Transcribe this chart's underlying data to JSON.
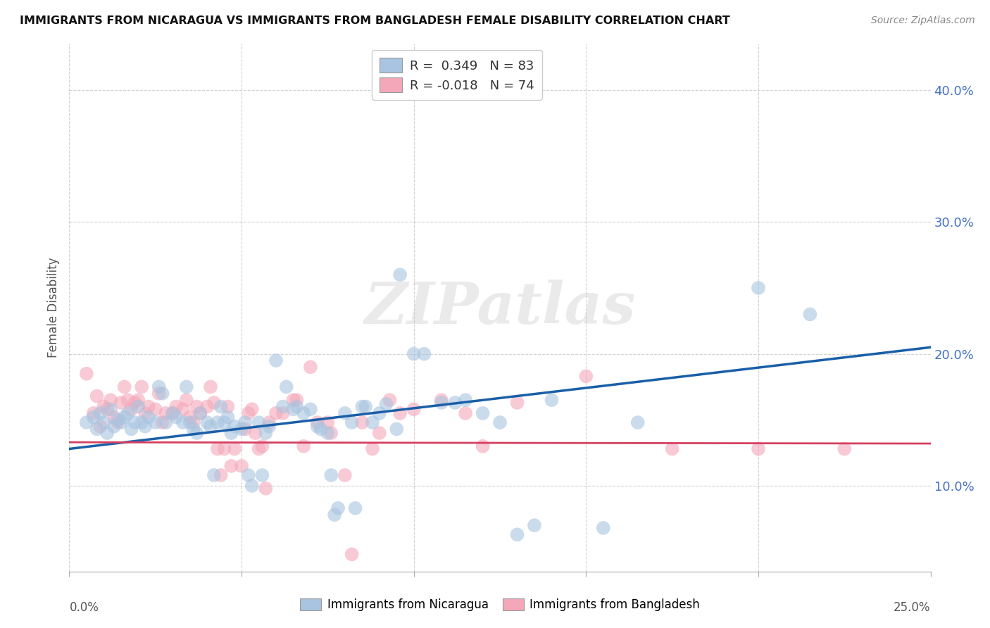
{
  "title": "IMMIGRANTS FROM NICARAGUA VS IMMIGRANTS FROM BANGLADESH FEMALE DISABILITY CORRELATION CHART",
  "source": "Source: ZipAtlas.com",
  "ylabel": "Female Disability",
  "yticks": [
    0.1,
    0.2,
    0.3,
    0.4
  ],
  "ytick_labels": [
    "10.0%",
    "20.0%",
    "30.0%",
    "40.0%"
  ],
  "xlim": [
    0.0,
    0.25
  ],
  "ylim": [
    0.035,
    0.435
  ],
  "watermark": "ZIPatlas",
  "legend_R": {
    "nicaragua": {
      "R": 0.349,
      "N": 83,
      "color": "#a8c4e0",
      "R_color": "#4472c4",
      "N_color": "#4472c4"
    },
    "bangladesh": {
      "R": -0.018,
      "N": 74,
      "color": "#f4a7b9",
      "R_color": "#e06070",
      "N_color": "#e06070"
    }
  },
  "trendline_nicaragua": {
    "color": "#1a5fa8",
    "start_x": 0.0,
    "start_y": 0.128,
    "end_x": 0.25,
    "end_y": 0.205
  },
  "trendline_bangladesh": {
    "color": "#d44060",
    "start_x": 0.0,
    "start_y": 0.133,
    "end_x": 0.25,
    "end_y": 0.132
  },
  "nicaragua_color": "#a8c4e0",
  "bangladesh_color": "#f4a7b9",
  "nicaragua_scatter": [
    [
      0.005,
      0.148
    ],
    [
      0.007,
      0.152
    ],
    [
      0.008,
      0.143
    ],
    [
      0.009,
      0.155
    ],
    [
      0.01,
      0.148
    ],
    [
      0.011,
      0.14
    ],
    [
      0.012,
      0.158
    ],
    [
      0.013,
      0.145
    ],
    [
      0.014,
      0.15
    ],
    [
      0.015,
      0.148
    ],
    [
      0.016,
      0.152
    ],
    [
      0.017,
      0.155
    ],
    [
      0.018,
      0.143
    ],
    [
      0.019,
      0.148
    ],
    [
      0.02,
      0.16
    ],
    [
      0.021,
      0.148
    ],
    [
      0.022,
      0.145
    ],
    [
      0.023,
      0.152
    ],
    [
      0.025,
      0.148
    ],
    [
      0.026,
      0.175
    ],
    [
      0.027,
      0.17
    ],
    [
      0.028,
      0.148
    ],
    [
      0.03,
      0.155
    ],
    [
      0.031,
      0.152
    ],
    [
      0.033,
      0.148
    ],
    [
      0.034,
      0.175
    ],
    [
      0.035,
      0.148
    ],
    [
      0.036,
      0.143
    ],
    [
      0.037,
      0.14
    ],
    [
      0.038,
      0.155
    ],
    [
      0.04,
      0.148
    ],
    [
      0.041,
      0.145
    ],
    [
      0.042,
      0.108
    ],
    [
      0.043,
      0.148
    ],
    [
      0.044,
      0.16
    ],
    [
      0.045,
      0.148
    ],
    [
      0.046,
      0.152
    ],
    [
      0.047,
      0.14
    ],
    [
      0.048,
      0.145
    ],
    [
      0.05,
      0.143
    ],
    [
      0.051,
      0.148
    ],
    [
      0.052,
      0.108
    ],
    [
      0.053,
      0.1
    ],
    [
      0.055,
      0.148
    ],
    [
      0.056,
      0.108
    ],
    [
      0.057,
      0.14
    ],
    [
      0.058,
      0.145
    ],
    [
      0.06,
      0.195
    ],
    [
      0.062,
      0.16
    ],
    [
      0.063,
      0.175
    ],
    [
      0.065,
      0.158
    ],
    [
      0.066,
      0.16
    ],
    [
      0.068,
      0.155
    ],
    [
      0.07,
      0.158
    ],
    [
      0.072,
      0.145
    ],
    [
      0.073,
      0.143
    ],
    [
      0.075,
      0.14
    ],
    [
      0.076,
      0.108
    ],
    [
      0.077,
      0.078
    ],
    [
      0.078,
      0.083
    ],
    [
      0.08,
      0.155
    ],
    [
      0.082,
      0.148
    ],
    [
      0.083,
      0.083
    ],
    [
      0.085,
      0.16
    ],
    [
      0.086,
      0.16
    ],
    [
      0.088,
      0.148
    ],
    [
      0.09,
      0.155
    ],
    [
      0.092,
      0.162
    ],
    [
      0.095,
      0.143
    ],
    [
      0.096,
      0.26
    ],
    [
      0.1,
      0.2
    ],
    [
      0.103,
      0.2
    ],
    [
      0.108,
      0.163
    ],
    [
      0.112,
      0.163
    ],
    [
      0.115,
      0.165
    ],
    [
      0.12,
      0.155
    ],
    [
      0.125,
      0.148
    ],
    [
      0.13,
      0.063
    ],
    [
      0.135,
      0.07
    ],
    [
      0.14,
      0.165
    ],
    [
      0.155,
      0.068
    ],
    [
      0.165,
      0.148
    ],
    [
      0.2,
      0.25
    ],
    [
      0.215,
      0.23
    ]
  ],
  "bangladesh_scatter": [
    [
      0.005,
      0.185
    ],
    [
      0.007,
      0.155
    ],
    [
      0.008,
      0.168
    ],
    [
      0.009,
      0.145
    ],
    [
      0.01,
      0.16
    ],
    [
      0.011,
      0.158
    ],
    [
      0.012,
      0.165
    ],
    [
      0.013,
      0.152
    ],
    [
      0.014,
      0.148
    ],
    [
      0.015,
      0.163
    ],
    [
      0.016,
      0.175
    ],
    [
      0.017,
      0.165
    ],
    [
      0.018,
      0.158
    ],
    [
      0.019,
      0.163
    ],
    [
      0.02,
      0.165
    ],
    [
      0.021,
      0.175
    ],
    [
      0.022,
      0.155
    ],
    [
      0.023,
      0.16
    ],
    [
      0.025,
      0.158
    ],
    [
      0.026,
      0.17
    ],
    [
      0.027,
      0.148
    ],
    [
      0.028,
      0.155
    ],
    [
      0.03,
      0.155
    ],
    [
      0.031,
      0.16
    ],
    [
      0.033,
      0.158
    ],
    [
      0.034,
      0.165
    ],
    [
      0.035,
      0.152
    ],
    [
      0.036,
      0.148
    ],
    [
      0.037,
      0.16
    ],
    [
      0.038,
      0.155
    ],
    [
      0.04,
      0.16
    ],
    [
      0.041,
      0.175
    ],
    [
      0.042,
      0.163
    ],
    [
      0.043,
      0.128
    ],
    [
      0.044,
      0.108
    ],
    [
      0.045,
      0.128
    ],
    [
      0.046,
      0.16
    ],
    [
      0.047,
      0.115
    ],
    [
      0.048,
      0.128
    ],
    [
      0.05,
      0.115
    ],
    [
      0.051,
      0.143
    ],
    [
      0.052,
      0.155
    ],
    [
      0.053,
      0.158
    ],
    [
      0.054,
      0.14
    ],
    [
      0.055,
      0.128
    ],
    [
      0.056,
      0.13
    ],
    [
      0.057,
      0.098
    ],
    [
      0.058,
      0.148
    ],
    [
      0.06,
      0.155
    ],
    [
      0.062,
      0.155
    ],
    [
      0.065,
      0.165
    ],
    [
      0.066,
      0.165
    ],
    [
      0.068,
      0.13
    ],
    [
      0.07,
      0.19
    ],
    [
      0.072,
      0.148
    ],
    [
      0.075,
      0.148
    ],
    [
      0.076,
      0.14
    ],
    [
      0.08,
      0.108
    ],
    [
      0.082,
      0.048
    ],
    [
      0.085,
      0.148
    ],
    [
      0.088,
      0.128
    ],
    [
      0.09,
      0.14
    ],
    [
      0.093,
      0.165
    ],
    [
      0.096,
      0.155
    ],
    [
      0.1,
      0.158
    ],
    [
      0.108,
      0.165
    ],
    [
      0.115,
      0.155
    ],
    [
      0.12,
      0.13
    ],
    [
      0.13,
      0.163
    ],
    [
      0.15,
      0.183
    ],
    [
      0.175,
      0.128
    ],
    [
      0.2,
      0.128
    ],
    [
      0.225,
      0.128
    ]
  ]
}
